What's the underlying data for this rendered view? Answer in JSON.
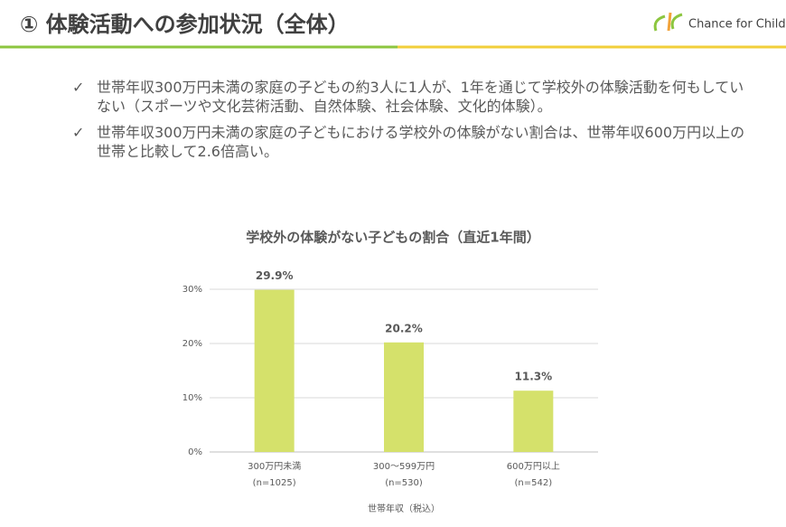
{
  "header": {
    "title": "① 体験活動への参加状況（全体）",
    "logo": "Chance for Children"
  },
  "bullets": [
    "世帯年収300万円未満の家庭の子どもの約3人に1人が、1年を通じて学校外の体験活動を何もしていない（スポーツや文化芸術活動、自然体験、社会体験、文化的体験）。",
    "世帯年収300万円未満の家庭の子どもにおける学校外の体験がない割合は、世帯年収600万円以上の世帯と比較して2.6倍高い。"
  ],
  "chart_data": {
    "type": "bar",
    "title": "学校外の体験がない子どもの割合（直近1年間）",
    "categories": [
      "300万円未満",
      "300～599万円",
      "600万円以上"
    ],
    "category_counts": [
      "(n=1025)",
      "(n=530)",
      "(n=542)"
    ],
    "values": [
      29.9,
      20.2,
      11.3
    ],
    "value_labels": [
      "29.9%",
      "20.2%",
      "11.3%"
    ],
    "color": "#d5e16b",
    "x_label": "世帯年収（税込）",
    "ylim": [
      0,
      30
    ],
    "yticks": [
      {
        "value": 0,
        "label": "0%"
      },
      {
        "value": 10,
        "label": "10%"
      },
      {
        "value": 20,
        "label": "20%"
      },
      {
        "value": 30,
        "label": "30%"
      }
    ],
    "grid": true
  }
}
